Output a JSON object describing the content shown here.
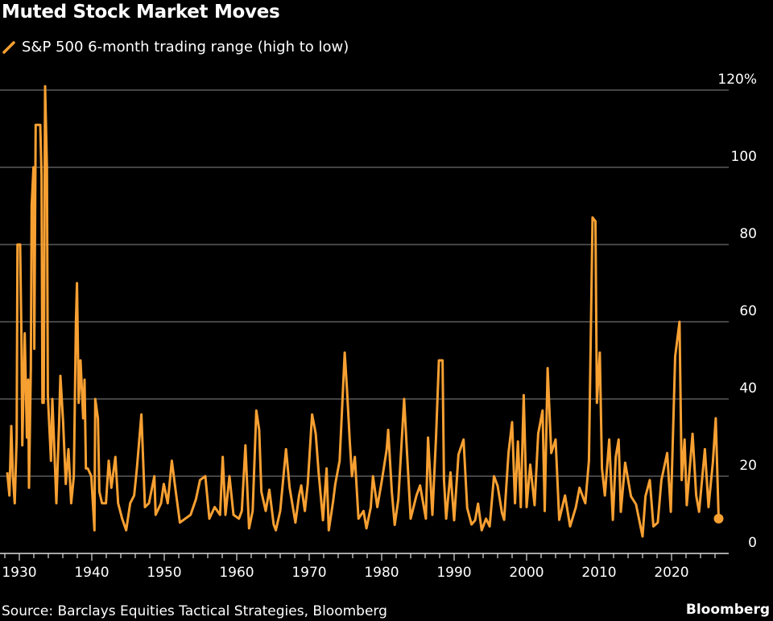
{
  "colors": {
    "background": "#000000",
    "series": "#f7a032",
    "grid": "#5a5a5a",
    "text": "#ffffff"
  },
  "chart_data": {
    "type": "line",
    "title": "Muted Stock Market Moves",
    "legend": {
      "position": "top-left",
      "entries": [
        "S&P 500 6-month trading range (high to low)"
      ]
    },
    "xlabel": "",
    "ylabel": "",
    "xlim": [
      1928,
      2027
    ],
    "ylim": [
      0,
      120
    ],
    "grid": true,
    "y_ticks": [
      "0",
      "20",
      "40",
      "60",
      "80",
      "100",
      "120%"
    ],
    "y_tick_values": [
      0,
      20,
      40,
      60,
      80,
      100,
      120
    ],
    "x_ticks": [
      "1930",
      "1940",
      "1950",
      "1960",
      "1970",
      "1980",
      "1990",
      "2000",
      "2010",
      "2020"
    ],
    "x_tick_values": [
      1930,
      1940,
      1950,
      1960,
      1970,
      1980,
      1990,
      2000,
      2010,
      2020
    ],
    "series": [
      {
        "name": "S&P 500 6-month trading range (high to low)",
        "x": [
          1928.33,
          1928.63,
          1928.89,
          1929.11,
          1929.37,
          1929.63,
          1929.74,
          1930.11,
          1930.3,
          1930.41,
          1930.74,
          1931.04,
          1931.22,
          1931.33,
          1931.59,
          1931.7,
          1931.96,
          1932.07,
          1932.26,
          1932.89,
          1933.07,
          1933.19,
          1933.37,
          1933.56,
          1933.81,
          1933.93,
          1934.19,
          1934.37,
          1934.56,
          1934.93,
          1935.11,
          1935.48,
          1935.67,
          1936.04,
          1936.41,
          1936.78,
          1937.15,
          1937.52,
          1937.81,
          1937.96,
          1938.19,
          1938.44,
          1938.81,
          1939.0,
          1939.19,
          1939.44,
          1939.93,
          1940.37,
          1940.48,
          1940.85,
          1941.04,
          1941.41,
          1941.96,
          1942.33,
          1942.7,
          1943.26,
          1943.63,
          1944.19,
          1944.74,
          1945.3,
          1945.85,
          1946.22,
          1946.85,
          1947.33,
          1947.89,
          1948.63,
          1948.81,
          1949.56,
          1949.93,
          1950.48,
          1951.04,
          1951.59,
          1952.15,
          1952.89,
          1953.63,
          1954.37,
          1954.93,
          1955.67,
          1956.22,
          1956.96,
          1957.7,
          1958.07,
          1958.44,
          1959.0,
          1959.56,
          1960.3,
          1960.7,
          1961.2,
          1961.7,
          1962.2,
          1962.7,
          1963.1,
          1963.4,
          1964.0,
          1964.5,
          1965.1,
          1965.4,
          1966.0,
          1966.8,
          1967.3,
          1968.1,
          1968.6,
          1968.9,
          1969.4,
          1969.8,
          1970.4,
          1970.9,
          1971.3,
          1971.9,
          1972.4,
          1972.7,
          1973.3,
          1973.6,
          1974.2,
          1974.9,
          1975.2,
          1975.6,
          1975.9,
          1976.3,
          1976.8,
          1977.5,
          1977.9,
          1978.5,
          1978.8,
          1979.4,
          1980.0,
          1980.7,
          1980.9,
          1981.4,
          1981.8,
          1982.3,
          1983.1,
          1983.5,
          1984.0,
          1984.8,
          1985.3,
          1986.1,
          1986.4,
          1987.0,
          1987.5,
          1987.9,
          1988.4,
          1988.6,
          1988.9,
          1989.5,
          1990.0,
          1990.6,
          1991.3,
          1991.8,
          1992.4,
          1992.9,
          1993.3,
          1993.8,
          1994.4,
          1994.9,
          1995.5,
          1996.0,
          1996.6,
          1996.9,
          1997.5,
          1998.0,
          1998.4,
          1998.8,
          1999.2,
          1999.6,
          2000.0,
          2000.5,
          2001.1,
          2001.6,
          2002.2,
          2002.5,
          2002.9,
          2003.4,
          2004.0,
          2004.5,
          2005.3,
          2006.0,
          2006.8,
          2007.3,
          2008.1,
          2008.6,
          2009.1,
          2009.5,
          2009.7,
          2010.1,
          2010.4,
          2010.8,
          2011.4,
          2011.9,
          2012.3,
          2012.7,
          2013.0,
          2013.6,
          2014.4,
          2015.1,
          2016.0,
          2016.4,
          2017.0,
          2017.5,
          2018.1,
          2018.6,
          2019.4,
          2019.9,
          2020.5,
          2021.1,
          2021.4,
          2021.8,
          2022.1,
          2022.9,
          2023.4,
          2023.8,
          2024.6,
          2025.1,
          2025.7,
          2026.1,
          2026.5
        ],
        "values": [
          21,
          15,
          33,
          20,
          13,
          30,
          80,
          80,
          55,
          28,
          57,
          30,
          45,
          17,
          48,
          90,
          100,
          53,
          111,
          111,
          98,
          39,
          39,
          121,
          100,
          41,
          31,
          24,
          40,
          22,
          13,
          33,
          46,
          34,
          18,
          27,
          13,
          20,
          60,
          70,
          39,
          50,
          35,
          45,
          22,
          22,
          20,
          6,
          40,
          35,
          16,
          13,
          13,
          24,
          17,
          25,
          13,
          9,
          6,
          13,
          15,
          22,
          36,
          12,
          13,
          20,
          10,
          13,
          18,
          13,
          24,
          16,
          8,
          9,
          10,
          14,
          19,
          20,
          9,
          12,
          10,
          25,
          10,
          20,
          10,
          9,
          11,
          28,
          6.5,
          11,
          37,
          32,
          16,
          11,
          16.5,
          7.5,
          6,
          11,
          27,
          17,
          8,
          15,
          17.6,
          11,
          18,
          36,
          31,
          21,
          8.6,
          22,
          6,
          13.5,
          18,
          24,
          52,
          43,
          29,
          20,
          25,
          9,
          11,
          6.5,
          12,
          20,
          12,
          18.6,
          27,
          32,
          16,
          7.4,
          14,
          40,
          26,
          9,
          15,
          17.6,
          9,
          30,
          10,
          30,
          50,
          50,
          19,
          9,
          21,
          8.6,
          25.6,
          29.5,
          11.8,
          7.5,
          8.6,
          12.9,
          6,
          9,
          7,
          20,
          17.5,
          10.5,
          8.7,
          26,
          34,
          13,
          29,
          12,
          41,
          12,
          23,
          12.5,
          31,
          37,
          11,
          48,
          26,
          29.5,
          8.7,
          15,
          7,
          12,
          17,
          13,
          24,
          87,
          86,
          39,
          52,
          22,
          15,
          29.5,
          8.7,
          25,
          29.5,
          10.8,
          23.5,
          14.8,
          12.7,
          4.4,
          14.8,
          19,
          7,
          8,
          19,
          26,
          10.8,
          51,
          60,
          19,
          29.5,
          12.5,
          31,
          15,
          10.8,
          27,
          12,
          23.5,
          35,
          9
        ]
      }
    ]
  },
  "source": "Source: Barclays Equities Tactical Strategies, Bloomberg",
  "logo_text": "Bloomberg"
}
